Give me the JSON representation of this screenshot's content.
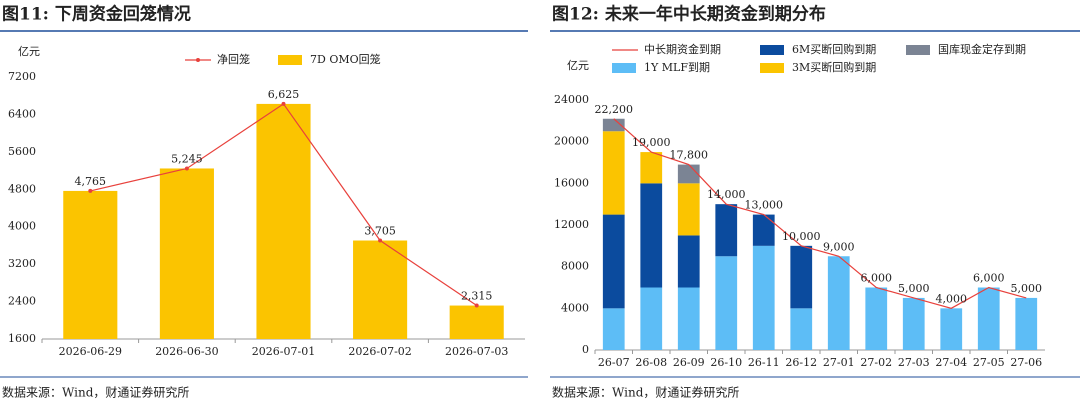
{
  "chart_data": [
    {
      "type": "bar",
      "title": "图11: 下周资金回笼情况",
      "ylabel": "亿元",
      "source": "数据来源：Wind，财通证券研究所",
      "categories": [
        "2026-06-29",
        "2026-06-30",
        "2026-07-01",
        "2026-07-02",
        "2026-07-03"
      ],
      "series": [
        {
          "name": "净回笼",
          "type": "line",
          "color": "#e8413c",
          "markers": true,
          "values": [
            4765,
            5245,
            6625,
            3705,
            2315
          ],
          "value_labels": [
            "4,765",
            "5,245",
            "6,625",
            "3,705",
            "2,315"
          ]
        },
        {
          "name": "7D OMO回笼",
          "type": "bar",
          "color": "#fbc400",
          "values": [
            4765,
            5245,
            6625,
            3705,
            2315
          ]
        }
      ],
      "ylim": [
        1600,
        7200
      ],
      "yticks": [
        1600,
        2400,
        3200,
        4000,
        4800,
        5600,
        6400,
        7200
      ],
      "grid": false
    },
    {
      "type": "bar",
      "stacked": true,
      "title": "图12: 未来一年中长期资金到期分布",
      "ylabel": "亿元",
      "source": "数据来源：Wind，财通证券研究所",
      "categories": [
        "26-07",
        "26-08",
        "26-09",
        "26-10",
        "26-11",
        "26-12",
        "27-01",
        "27-02",
        "27-03",
        "27-04",
        "27-05",
        "27-06"
      ],
      "series": [
        {
          "name": "中长期资金到期",
          "type": "line",
          "color": "#e8413c",
          "markers": false,
          "values": [
            22200,
            19000,
            17800,
            14000,
            13000,
            10000,
            9000,
            6000,
            5000,
            4000,
            6000,
            5000
          ],
          "value_labels": [
            "22,200",
            "19,000",
            "17,800",
            "14,000",
            "13,000",
            "10,000",
            "9,000",
            "6,000",
            "5,000",
            "4,000",
            "6,000",
            "5,000"
          ]
        },
        {
          "name": "6M买断回购到期",
          "type": "bar",
          "color": "#0b4b9e",
          "values": [
            9000,
            10000,
            5000,
            5000,
            3000,
            6000,
            0,
            0,
            0,
            0,
            0,
            0
          ]
        },
        {
          "name": "国库现金定存到期",
          "type": "bar",
          "color": "#7b8494",
          "values": [
            1200,
            0,
            1800,
            0,
            0,
            0,
            0,
            0,
            0,
            0,
            0,
            0
          ]
        },
        {
          "name": "1Y MLF到期",
          "type": "bar",
          "color": "#5dbdf6",
          "values": [
            4000,
            6000,
            6000,
            9000,
            10000,
            4000,
            9000,
            6000,
            5000,
            4000,
            6000,
            5000
          ]
        },
        {
          "name": "3M买断回购到期",
          "type": "bar",
          "color": "#fbc400",
          "values": [
            8000,
            3000,
            5000,
            0,
            0,
            0,
            0,
            0,
            0,
            0,
            0,
            0
          ]
        }
      ],
      "ylim": [
        0,
        24000
      ],
      "yticks": [
        0,
        4000,
        8000,
        12000,
        16000,
        20000,
        24000
      ],
      "grid": false
    }
  ]
}
